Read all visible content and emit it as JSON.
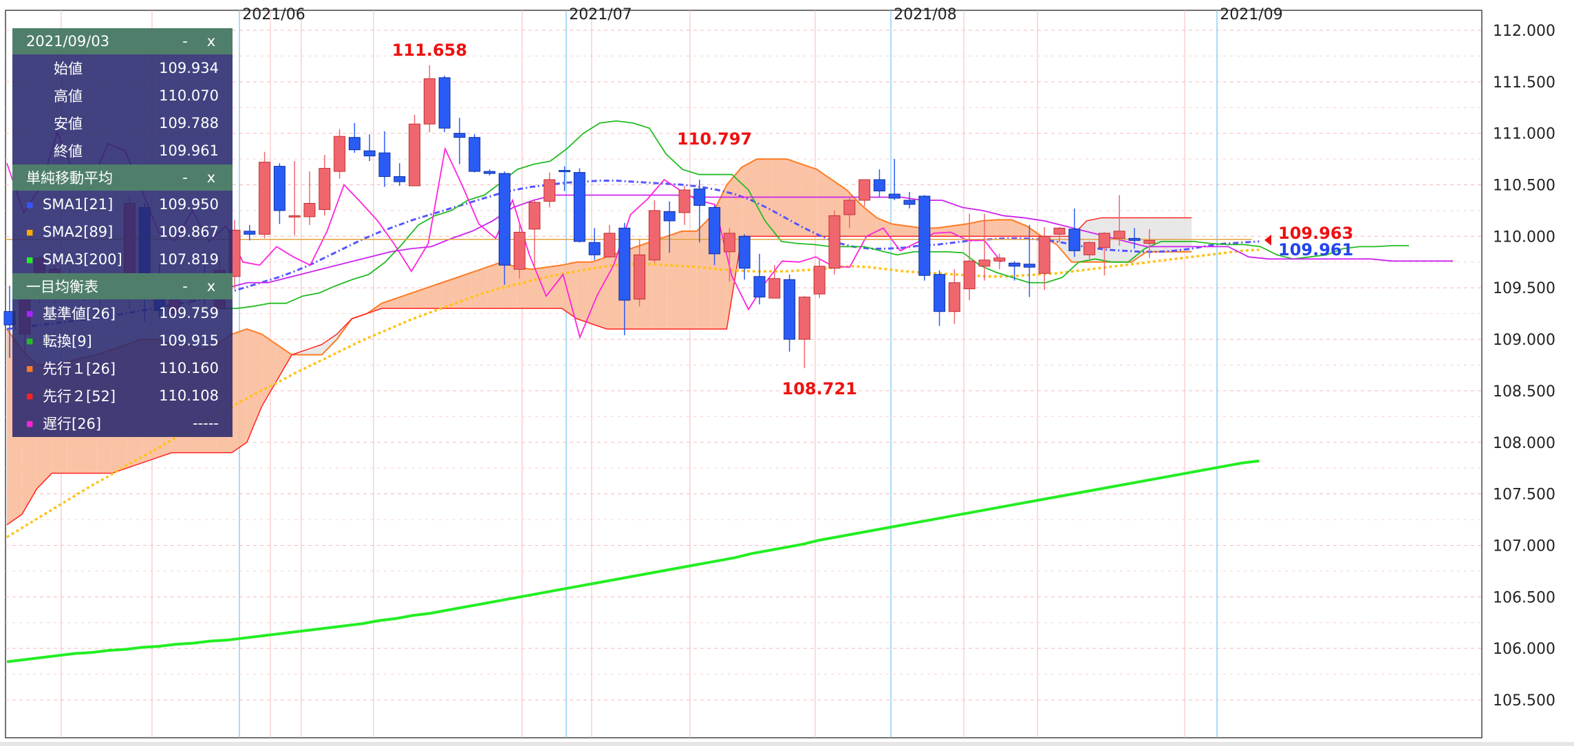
{
  "chart_data": {
    "type": "candlestick",
    "title": "",
    "y_range": [
      105.3,
      112.3
    ],
    "y_ticks": [
      "112.000",
      "111.500",
      "111.000",
      "110.500",
      "110.000",
      "109.500",
      "109.000",
      "108.500",
      "108.000",
      "107.500",
      "107.000",
      "106.500",
      "106.000",
      "105.500"
    ],
    "x_labels": [
      "2021/06",
      "2021/07",
      "2021/08",
      "2021/09"
    ],
    "candles": [
      [
        109.27,
        109.14,
        108.82,
        109.52
      ],
      [
        109.05,
        109.42,
        108.84,
        109.54
      ],
      [
        109.5,
        109.79,
        109.35,
        109.82
      ],
      [
        109.57,
        109.68,
        109.35,
        109.75
      ],
      [
        109.58,
        109.55,
        109.4,
        109.68
      ],
      [
        109.55,
        109.49,
        109.37,
        109.63
      ],
      [
        109.52,
        109.55,
        109.31,
        109.66
      ],
      [
        109.49,
        109.58,
        109.38,
        109.62
      ],
      [
        109.51,
        110.32,
        109.3,
        110.4
      ],
      [
        110.28,
        109.51,
        109.17,
        110.32
      ],
      [
        109.5,
        109.28,
        109.2,
        109.73
      ],
      [
        109.26,
        109.5,
        109.24,
        109.63
      ],
      [
        109.46,
        109.62,
        109.33,
        109.66
      ],
      [
        109.59,
        109.43,
        109.34,
        109.8
      ],
      [
        109.3,
        109.67,
        109.31,
        109.8
      ],
      [
        109.61,
        110.06,
        109.49,
        110.16
      ],
      [
        110.05,
        110.02,
        109.96,
        110.11
      ],
      [
        110.02,
        110.72,
        109.98,
        110.82
      ],
      [
        110.68,
        110.25,
        110.12,
        110.71
      ],
      [
        110.2,
        110.2,
        110.01,
        110.73
      ],
      [
        110.19,
        110.32,
        110.11,
        110.63
      ],
      [
        110.26,
        110.66,
        110.2,
        110.79
      ],
      [
        110.63,
        110.97,
        110.56,
        111.04
      ],
      [
        110.96,
        110.84,
        110.81,
        111.1
      ],
      [
        110.83,
        110.78,
        110.73,
        110.99
      ],
      [
        110.81,
        110.58,
        110.48,
        111.02
      ],
      [
        110.58,
        110.53,
        110.49,
        110.71
      ],
      [
        110.49,
        111.09,
        110.49,
        111.18
      ],
      [
        111.09,
        111.53,
        111.01,
        111.66
      ],
      [
        111.54,
        111.05,
        111.01,
        111.56
      ],
      [
        111.0,
        110.96,
        110.7,
        111.15
      ],
      [
        110.96,
        110.63,
        110.62,
        110.99
      ],
      [
        110.63,
        110.61,
        110.59,
        110.65
      ],
      [
        110.61,
        109.72,
        109.53,
        110.63
      ],
      [
        109.68,
        110.04,
        109.59,
        110.12
      ],
      [
        110.07,
        110.33,
        109.7,
        110.35
      ],
      [
        110.34,
        110.55,
        110.28,
        110.62
      ],
      [
        110.64,
        110.63,
        110.44,
        110.68
      ],
      [
        110.62,
        109.95,
        109.94,
        110.66
      ],
      [
        109.94,
        109.82,
        109.77,
        110.08
      ],
      [
        109.8,
        110.03,
        109.79,
        110.11
      ],
      [
        110.08,
        109.38,
        109.04,
        110.13
      ],
      [
        109.39,
        109.82,
        109.32,
        109.97
      ],
      [
        109.77,
        110.25,
        109.74,
        110.35
      ],
      [
        110.24,
        110.15,
        109.84,
        110.34
      ],
      [
        110.23,
        110.45,
        110.11,
        110.49
      ],
      [
        110.46,
        110.3,
        109.94,
        110.55
      ],
      [
        110.28,
        109.83,
        109.72,
        110.3
      ],
      [
        109.85,
        110.03,
        109.56,
        110.08
      ],
      [
        110.0,
        109.69,
        109.58,
        110.02
      ],
      [
        109.61,
        109.41,
        109.34,
        109.83
      ],
      [
        109.4,
        109.59,
        109.43,
        109.72
      ],
      [
        109.58,
        109.0,
        108.88,
        109.63
      ],
      [
        109.0,
        109.41,
        108.72,
        109.42
      ],
      [
        109.44,
        109.71,
        109.4,
        109.79
      ],
      [
        109.69,
        110.2,
        109.63,
        110.25
      ],
      [
        110.21,
        110.35,
        110.08,
        110.39
      ],
      [
        110.35,
        110.55,
        110.29,
        110.55
      ],
      [
        110.55,
        110.44,
        110.38,
        110.65
      ],
      [
        110.41,
        110.37,
        110.35,
        110.75
      ],
      [
        110.35,
        110.31,
        110.27,
        110.43
      ],
      [
        110.39,
        109.62,
        109.57,
        110.4
      ],
      [
        109.63,
        109.27,
        109.13,
        109.67
      ],
      [
        109.27,
        109.55,
        109.15,
        109.68
      ],
      [
        109.49,
        109.76,
        109.38,
        110.22
      ],
      [
        109.71,
        109.77,
        109.57,
        110.22
      ],
      [
        109.76,
        109.79,
        109.68,
        109.83
      ],
      [
        109.74,
        109.71,
        109.57,
        109.76
      ],
      [
        109.73,
        109.7,
        109.41,
        110.11
      ],
      [
        109.64,
        110.0,
        109.48,
        110.09
      ],
      [
        110.02,
        110.08,
        109.94,
        110.09
      ],
      [
        110.07,
        109.86,
        109.8,
        110.27
      ],
      [
        109.82,
        109.94,
        109.78,
        109.95
      ],
      [
        109.89,
        110.03,
        109.62,
        110.04
      ],
      [
        109.98,
        110.05,
        109.91,
        110.4
      ],
      [
        109.98,
        109.96,
        109.88,
        110.08
      ],
      [
        109.93,
        109.96,
        109.79,
        110.07
      ]
    ],
    "series": [
      {
        "name": "SMA3[200]",
        "values": [
          105.87,
          105.89,
          105.91,
          105.93,
          105.95,
          105.96,
          105.98,
          105.99,
          106.01,
          106.02,
          106.04,
          106.05,
          106.07,
          106.08,
          106.1,
          106.12,
          106.14,
          106.16,
          106.18,
          106.2,
          106.22,
          106.24,
          106.27,
          106.29,
          106.32,
          106.34,
          106.37,
          106.4,
          106.43,
          106.46,
          106.49,
          106.52,
          106.55,
          106.58,
          106.61,
          106.64,
          106.67,
          106.7,
          106.73,
          106.76,
          106.79,
          106.82,
          106.85,
          106.88,
          106.92,
          106.95,
          106.98,
          107.01,
          107.05,
          107.08,
          107.11,
          107.14,
          107.17,
          107.2,
          107.23,
          107.26,
          107.29,
          107.32,
          107.35,
          107.38,
          107.41,
          107.44,
          107.47,
          107.5,
          107.53,
          107.56,
          107.59,
          107.62,
          107.65,
          107.68,
          107.71,
          107.74,
          107.77,
          107.8,
          107.82
        ]
      },
      {
        "name": "SMA2[89]",
        "values": [
          107.08,
          107.18,
          107.28,
          107.38,
          107.48,
          107.58,
          107.67,
          107.77,
          107.86,
          107.95,
          108.05,
          108.14,
          108.23,
          108.32,
          108.41,
          108.5,
          108.58,
          108.67,
          108.75,
          108.83,
          108.91,
          108.99,
          109.06,
          109.13,
          109.2,
          109.26,
          109.32,
          109.38,
          109.44,
          109.49,
          109.53,
          109.57,
          109.61,
          109.64,
          109.67,
          109.7,
          109.72,
          109.73,
          109.73,
          109.72,
          109.71,
          109.7,
          109.68,
          109.67,
          109.66,
          109.66,
          109.66,
          109.67,
          109.68,
          109.7,
          109.71,
          109.7,
          109.68,
          109.66,
          109.65,
          109.64,
          109.63,
          109.62,
          109.61,
          109.61,
          109.62,
          109.63,
          109.64,
          109.66,
          109.68,
          109.7,
          109.72,
          109.74,
          109.76,
          109.78,
          109.8,
          109.82,
          109.84,
          109.86,
          109.87
        ]
      },
      {
        "name": "SMA1[21]",
        "values": [
          109.1,
          109.12,
          109.14,
          109.16,
          109.18,
          109.2,
          109.22,
          109.25,
          109.28,
          109.31,
          109.34,
          109.37,
          109.41,
          109.45,
          109.5,
          109.55,
          109.6,
          109.66,
          109.73,
          109.81,
          109.89,
          109.97,
          110.04,
          110.1,
          110.16,
          110.21,
          110.26,
          110.31,
          110.36,
          110.41,
          110.45,
          110.48,
          110.5,
          110.52,
          110.53,
          110.54,
          110.54,
          110.53,
          110.52,
          110.51,
          110.5,
          110.48,
          110.45,
          110.41,
          110.35,
          110.27,
          110.18,
          110.09,
          110.01,
          109.94,
          109.9,
          109.88,
          109.88,
          109.89,
          109.91,
          109.92,
          109.94,
          109.96,
          109.97,
          109.98,
          109.98,
          109.97,
          109.95,
          109.92,
          109.89,
          109.87,
          109.86,
          109.85,
          109.85,
          109.86,
          109.88,
          109.91,
          109.93,
          109.94,
          109.95
        ]
      },
      {
        "name": "転換[9]",
        "values": [
          109.3,
          109.3,
          109.32,
          109.35,
          109.35,
          109.42,
          109.45,
          109.52,
          109.58,
          109.63,
          109.75,
          109.92,
          110.11,
          110.2,
          110.25,
          110.35,
          110.4,
          110.52,
          110.65,
          110.7,
          110.73,
          110.85,
          111.0,
          111.1,
          111.12,
          111.1,
          111.05,
          110.8,
          110.65,
          110.6,
          110.6,
          110.6,
          110.45,
          110.15,
          109.95,
          109.93,
          109.92,
          109.9,
          109.9,
          109.9,
          109.86,
          109.82,
          109.85,
          109.85,
          109.85,
          109.84,
          109.72,
          109.65,
          109.6,
          109.55,
          109.55,
          109.6,
          109.75,
          109.78,
          109.75,
          109.75,
          109.88,
          109.95,
          109.95,
          109.95,
          109.93,
          109.92,
          109.92,
          109.9,
          109.82,
          109.78,
          109.8,
          109.82,
          109.88,
          109.9,
          109.9,
          109.91,
          109.91
        ]
      },
      {
        "name": "基準値[26]",
        "values": [
          109.5,
          109.55,
          109.55,
          109.6,
          109.65,
          109.7,
          109.75,
          109.8,
          109.85,
          109.88,
          109.9,
          109.98,
          110.05,
          110.15,
          110.28,
          110.35,
          110.4,
          110.4,
          110.4,
          110.4,
          110.4,
          110.4,
          110.4,
          110.38,
          110.38,
          110.38,
          110.38,
          110.38,
          110.38,
          110.38,
          110.38,
          110.38,
          110.38,
          110.38,
          110.35,
          110.35,
          110.28,
          110.25,
          110.2,
          110.18,
          110.15,
          110.1,
          110.05,
          110.0,
          109.95,
          109.9,
          109.9,
          109.9,
          109.9,
          109.9,
          109.8,
          109.78,
          109.78,
          109.78,
          109.78,
          109.78,
          109.78,
          109.76,
          109.76,
          109.76,
          109.76
        ]
      },
      {
        "name": "遅行[26]",
        "values": [
          110.71,
          110.23,
          110.48,
          111.01,
          110.6,
          110.52,
          110.9,
          110.83,
          110.45,
          110.04,
          109.96,
          110.25,
          109.95,
          110.1,
          109.75,
          109.72,
          109.9,
          109.8,
          109.72,
          110.05,
          110.5,
          110.33,
          110.15,
          109.92,
          109.66,
          109.93,
          110.85,
          110.5,
          110.12,
          109.98,
          110.35,
          109.82,
          109.42,
          109.63,
          109.02,
          109.42,
          109.72,
          110.21,
          110.36,
          110.55,
          110.44,
          110.35,
          110.31,
          109.62,
          109.29,
          109.55,
          109.76,
          109.75,
          109.8,
          109.71,
          109.7,
          110.0,
          110.08,
          109.86,
          109.94,
          110.03,
          110.04,
          109.96,
          109.96,
          109.75
        ]
      },
      {
        "name": "先行１[26]",
        "values": [
          109.1,
          108.9,
          108.75,
          108.75,
          108.78,
          108.82,
          108.85,
          108.9,
          108.95,
          109.0,
          109.0,
          108.95,
          108.95,
          108.9,
          108.95,
          109.05,
          109.1,
          109.05,
          108.95,
          108.85,
          108.85,
          108.85,
          109.0,
          109.2,
          109.25,
          109.35,
          109.4,
          109.45,
          109.5,
          109.55,
          109.6,
          109.65,
          109.7,
          109.75,
          109.7,
          109.68,
          109.7,
          109.72,
          109.75,
          109.75,
          109.8,
          109.85,
          109.9,
          109.95,
          110.0,
          110.05,
          110.05,
          110.2,
          110.5,
          110.67,
          110.75,
          110.75,
          110.75,
          110.7,
          110.65,
          110.55,
          110.45,
          110.3,
          110.18,
          110.12,
          110.1,
          110.08,
          110.08,
          110.1,
          110.12,
          110.15,
          110.16,
          110.16,
          110.1,
          110.0,
          109.92,
          109.75,
          109.75,
          109.75,
          109.75,
          109.75,
          109.85,
          109.85,
          109.85,
          109.85
        ]
      },
      {
        "name": "先行２[52]",
        "values": [
          107.2,
          107.3,
          107.55,
          107.7,
          107.7,
          107.7,
          107.7,
          107.7,
          107.75,
          107.8,
          107.85,
          107.9,
          107.9,
          107.9,
          107.9,
          107.9,
          108.0,
          108.35,
          108.6,
          108.85,
          108.9,
          108.95,
          109.05,
          109.2,
          109.25,
          109.3,
          109.3,
          109.3,
          109.3,
          109.3,
          109.3,
          109.3,
          109.3,
          109.3,
          109.3,
          109.3,
          109.3,
          109.3,
          109.2,
          109.15,
          109.1,
          109.1,
          109.1,
          109.1,
          109.1,
          109.1,
          109.1,
          109.1,
          109.1,
          110.0,
          110.0,
          110.0,
          110.0,
          110.0,
          110.0,
          110.0,
          110.0,
          110.0,
          110.0,
          110.0,
          110.0,
          110.0,
          110.0,
          110.0,
          110.0,
          110.0,
          110.0,
          110.0,
          110.0,
          110.0,
          110.0,
          110.0,
          110.15,
          110.18,
          110.18,
          110.18,
          110.18,
          110.18,
          110.18,
          110.18
        ]
      }
    ],
    "horizontal_line": 109.97,
    "annotations": [
      {
        "text": "111.658",
        "x_index": 28,
        "value": 111.658
      },
      {
        "text": "110.797",
        "x_index": 47,
        "value": 110.797
      },
      {
        "text": "108.721",
        "x_index": 54,
        "value": 108.721
      }
    ],
    "current_price_labels": [
      {
        "text": "109.963",
        "color": "#ee1111"
      },
      {
        "text": "109.961",
        "color": "#2244ee"
      }
    ],
    "colors": {
      "up": "#f0666f",
      "down": "#2a5cf5",
      "sma1": "#5555ff",
      "sma2": "#ffc21a",
      "sma3": "#22ee22",
      "tenkan": "#22bb22",
      "kijun": "#cc22ee",
      "chikou": "#ff22dd",
      "senkou1": "#ff7a22",
      "senkou2": "#ff2222",
      "cloud_up": "#fbbd9b",
      "cloud_down": "#e6e6e6"
    }
  },
  "panel": {
    "date_header": "2021/09/03",
    "minimize": "-",
    "close": "x",
    "ohlc": [
      {
        "label": "始値",
        "value": "109.934"
      },
      {
        "label": "高値",
        "value": "110.070"
      },
      {
        "label": "安値",
        "value": "109.788"
      },
      {
        "label": "終値",
        "value": "109.961"
      }
    ],
    "sma_header": "単純移動平均",
    "sma": [
      {
        "label": "SMA1[21]",
        "value": "109.950",
        "color": "#3355ff"
      },
      {
        "label": "SMA2[89]",
        "value": "109.867",
        "color": "#ffaa00"
      },
      {
        "label": "SMA3[200]",
        "value": "107.819",
        "color": "#22ee22"
      }
    ],
    "ichimoku_header": "一目均衡表",
    "ichimoku": [
      {
        "label": "基準値[26]",
        "value": "109.759",
        "color": "#aa22ff"
      },
      {
        "label": "転換[9]",
        "value": "109.915",
        "color": "#22bb22"
      },
      {
        "label": "先行１[26]",
        "value": "110.160",
        "color": "#ff7a22"
      },
      {
        "label": "先行２[52]",
        "value": "110.108",
        "color": "#ff2222"
      },
      {
        "label": "遅行[26]",
        "value": "-----",
        "color": "#ff22dd"
      }
    ]
  }
}
